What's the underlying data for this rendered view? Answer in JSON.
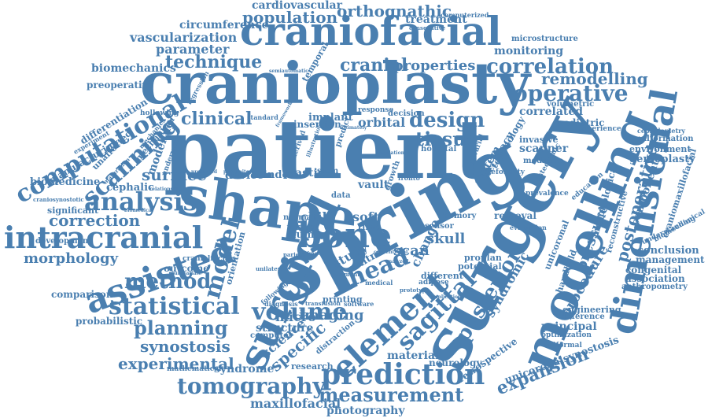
{
  "cloud": {
    "color": "#4a7fb0",
    "words": [
      "craniofacial",
      "cranioplasty",
      "patient",
      "shape",
      "spring",
      "surgery",
      "modelling",
      "dimensional",
      "surgical",
      "element",
      "bone",
      "assisted",
      "intracranial",
      "analysis",
      "computational",
      "scanning",
      "prediction",
      "tomography",
      "measurement",
      "volume",
      "statistical",
      "method",
      "model",
      "head",
      "sagittal",
      "posterior",
      "design",
      "tissue",
      "operative",
      "correlation",
      "technique",
      "population",
      "orthognathic",
      "cardiovascular",
      "vascularization",
      "parameter",
      "circumference",
      "biomechanics",
      "cranial",
      "properties",
      "remodelling",
      "clinical",
      "surface",
      "correction",
      "morphology",
      "planning",
      "experimental",
      "synostosis",
      "expansion",
      "postoperative",
      "procedure",
      "pressure",
      "specific",
      "imaging",
      "science",
      "structure",
      "syndrome",
      "maxillofacial",
      "photography",
      "material",
      "neurology",
      "principal",
      "engineering",
      "difference",
      "optimization",
      "uniformal",
      "unicoronalsynostosis",
      "retrospective",
      "syndromic",
      "change",
      "scan",
      "skull",
      "soft",
      "child",
      "study",
      "control",
      "plastic",
      "device",
      "index",
      "vault",
      "micro",
      "outcome",
      "comparison",
      "probabilistic",
      "significant",
      "development",
      "cephalic",
      "biomedicine",
      "manufacturing",
      "unaffected",
      "mechanical",
      "differentiation",
      "preoperative",
      "treatment",
      "monitoring",
      "microstructure",
      "computerized",
      "pediatric",
      "correlated",
      "volumetric",
      "experience",
      "scanner",
      "invasive",
      "medicine",
      "genioplasty",
      "environment",
      "malformation",
      "cephalometry",
      "component",
      "craniomaxillofacial",
      "biomechanical",
      "understanding",
      "conclusion",
      "management",
      "congenital",
      "association",
      "anthropometry",
      "reconstructive",
      "morphological",
      "handheld",
      "unicoronal",
      "removal",
      "proplan",
      "potential",
      "different",
      "adipose",
      "printing",
      "computer",
      "distraction",
      "research",
      "mathematical",
      "orbital",
      "implant",
      "insertion",
      "decision",
      "system",
      "accuracy",
      "technology",
      "hospital",
      "human",
      "virtual",
      "time",
      "normal",
      "sensor",
      "memory",
      "orientation",
      "cranialfacial",
      "temporal",
      "standard",
      "hollowing",
      "mechanics",
      "modeling",
      "underwent",
      "response",
      "fronto",
      "growth",
      "stem",
      "data",
      "evaluation",
      "education",
      "prevalence",
      "deformity",
      "calvarial",
      "osteogenic",
      "experiment",
      "regression",
      "consecutive",
      "following",
      "diagnosis",
      "software",
      "medical",
      "segment",
      "prototype",
      "implication",
      "transfusion",
      "frequency",
      "unilateral",
      "parietal",
      "multivariate",
      "preserved",
      "progenitor",
      "relationship",
      "biomedical",
      "craniosynostotic",
      "maturation",
      "derived",
      "illustration",
      "predict",
      "semiautomatic",
      "framework",
      "ultimately",
      "simulation",
      "conventional",
      "analyzed"
    ]
  }
}
